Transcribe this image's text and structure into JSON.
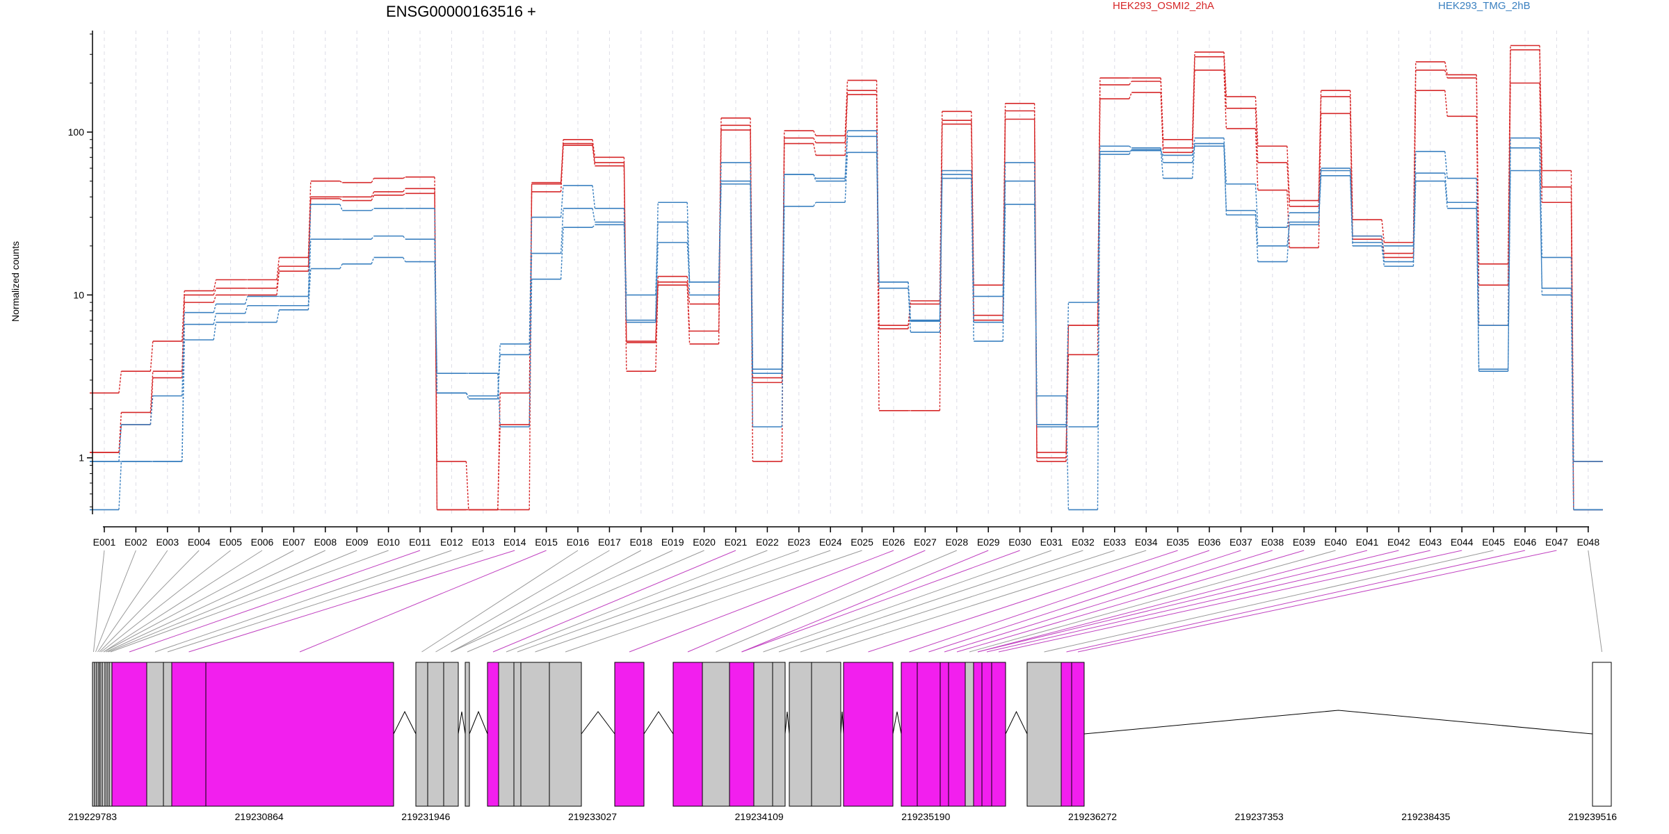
{
  "chart_data": {
    "type": "line",
    "title": "ENSG00000163516 +",
    "ylabel": "Normalized counts",
    "y_scale": "log",
    "y_ticks": [
      1,
      10,
      100
    ],
    "y_tick_labels": [
      "1",
      "10",
      "100"
    ],
    "ylim": [
      0.45,
      420
    ],
    "legend": [
      {
        "name": "HEK293_OSMI2_2hA",
        "color": "#d62728"
      },
      {
        "name": "HEK293_TMG_2hB",
        "color": "#3a80c0"
      }
    ],
    "categories": [
      "E001",
      "E002",
      "E003",
      "E004",
      "E005",
      "E006",
      "E007",
      "E008",
      "E009",
      "E010",
      "E011",
      "E012",
      "E013",
      "E014",
      "E015",
      "E016",
      "E017",
      "E018",
      "E019",
      "E020",
      "E021",
      "E022",
      "E023",
      "E024",
      "E025",
      "E026",
      "E027",
      "E028",
      "E029",
      "E030",
      "E031",
      "E032",
      "E033",
      "E034",
      "E035",
      "E036",
      "E037",
      "E038",
      "E039",
      "E040",
      "E041",
      "E042",
      "E043",
      "E044",
      "E045",
      "E046",
      "E047",
      "E048"
    ],
    "series": [
      {
        "group": 0,
        "values": [
          2.5,
          3.4,
          5.2,
          10.6,
          12.4,
          12.4,
          17,
          50,
          49,
          52,
          53,
          0.95,
          0.48,
          0.48,
          49,
          90,
          70,
          5.2,
          13,
          8.8,
          122,
          3.1,
          102,
          95,
          208,
          6.5,
          9.2,
          134,
          11.5,
          150,
          1.08,
          6.5,
          215,
          215,
          90,
          310,
          165,
          82,
          38,
          180,
          29,
          21,
          270,
          225,
          15.5,
          340,
          58,
          0.95
        ]
      },
      {
        "group": 0,
        "values": [
          1.08,
          1.9,
          3.4,
          10,
          11,
          11,
          15,
          40,
          40,
          43,
          45,
          0.48,
          0.48,
          2.5,
          48,
          85,
          65,
          5.1,
          12,
          6,
          110,
          2.9,
          92,
          86,
          180,
          6.2,
          8.8,
          118,
          7.5,
          135,
          1,
          6.5,
          195,
          205,
          80,
          290,
          140,
          65,
          35,
          165,
          23,
          18,
          240,
          215,
          6.5,
          320,
          46,
          0.48
        ]
      },
      {
        "group": 0,
        "values": [
          1.08,
          1.6,
          3.1,
          9,
          10,
          10,
          14,
          39,
          38,
          41,
          42,
          0.48,
          0.48,
          1.6,
          43,
          83,
          62,
          3.4,
          11.5,
          5,
          103,
          0.95,
          85,
          72,
          170,
          1.95,
          1.95,
          112,
          7,
          120,
          0.95,
          4.3,
          160,
          175,
          75,
          240,
          105,
          44,
          19.5,
          130,
          22,
          17,
          180,
          125,
          11.5,
          200,
          37,
          0.48
        ]
      },
      {
        "group": 1,
        "values": [
          0.95,
          1.6,
          2.4,
          7.8,
          8.8,
          9.8,
          9.8,
          36,
          33,
          34,
          34,
          2.5,
          2.4,
          5,
          30,
          47,
          34,
          7,
          37,
          12,
          65,
          3.3,
          55,
          52,
          102,
          12,
          6.9,
          58,
          9.8,
          65,
          1.55,
          9,
          82,
          80,
          65,
          92,
          48,
          26,
          32,
          60,
          21,
          20,
          76,
          52,
          6.5,
          92,
          17,
          0.95
        ]
      },
      {
        "group": 1,
        "values": [
          0.95,
          0.95,
          0.95,
          6.6,
          7.7,
          8.6,
          8.6,
          22,
          22,
          23,
          22,
          2.5,
          2.3,
          4.3,
          18,
          34,
          28,
          10,
          28,
          10,
          48,
          1.55,
          35,
          37,
          75,
          11,
          5.9,
          52,
          6.8,
          50,
          1.6,
          1.55,
          73,
          78,
          52,
          85,
          31,
          16,
          28,
          54,
          20,
          15,
          50,
          34,
          3.5,
          58,
          11,
          0.48
        ]
      },
      {
        "group": 1,
        "values": [
          0.48,
          0.95,
          0.95,
          5.3,
          6.8,
          6.8,
          8.1,
          14.5,
          15.5,
          17,
          16,
          3.3,
          3.3,
          1.55,
          12.5,
          26,
          27,
          6.8,
          21,
          12,
          50,
          3.5,
          55,
          50,
          94,
          12,
          7,
          55,
          5.2,
          36,
          2.4,
          0.48,
          76,
          77,
          72,
          82,
          33,
          20,
          27,
          58,
          23,
          16,
          56,
          37,
          3.4,
          80,
          10,
          0.48
        ]
      }
    ]
  },
  "genome_axis": {
    "labels": [
      "219229783",
      "219230864",
      "219231946",
      "219233027",
      "219234109",
      "219235190",
      "219236272",
      "219237353",
      "219238435",
      "219239516"
    ]
  },
  "colors": {
    "exon_tested": "#f21fee",
    "exon_other": "#c8c8c8",
    "connector_tested": "#c040c0",
    "connector_other": "#999999",
    "grid": "#dcdce6"
  }
}
